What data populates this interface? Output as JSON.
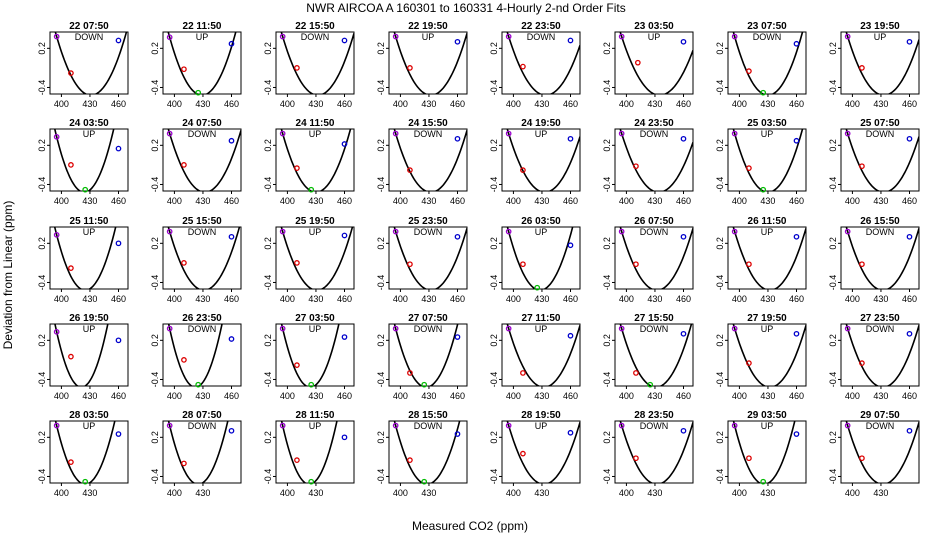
{
  "title": "NWR   AIRCOA A   160301 to 160331   4-Hourly 2-nd Order Fits",
  "xlabel": "Measured CO2 (ppm)",
  "ylabel": "Deviation from Linear (ppm)",
  "colors": {
    "curve": "#000000",
    "p1": "#9900cc",
    "p2": "#dd0000",
    "p3": "#00bb00",
    "p4": "#0000cc",
    "frame": "#000000"
  },
  "chart_data": {
    "type": "scatter",
    "layout": "grid",
    "rows": 5,
    "cols": 8,
    "ylim": [
      -0.5,
      0.45
    ],
    "yticks": [
      -0.4,
      0.2
    ],
    "xticks_rows_1_4": [
      400,
      430,
      460
    ],
    "xticks_row_5": [
      400,
      430
    ],
    "xlim": [
      388,
      470
    ],
    "panels": [
      {
        "label": "22 07:50",
        "dir": "DOWN",
        "vertex": 431,
        "pts": [
          [
            395,
            0.38
          ],
          [
            410,
            -0.18
          ],
          [
            460,
            0.32
          ]
        ]
      },
      {
        "label": "22 11:50",
        "dir": "UP",
        "vertex": 429,
        "pts": [
          [
            395,
            0.37
          ],
          [
            410,
            -0.12
          ],
          [
            425,
            -0.48
          ],
          [
            460,
            0.27
          ]
        ]
      },
      {
        "label": "22 15:50",
        "dir": "DOWN",
        "vertex": 432,
        "pts": [
          [
            395,
            0.38
          ],
          [
            410,
            -0.1
          ],
          [
            460,
            0.32
          ]
        ]
      },
      {
        "label": "22 19:50",
        "dir": "UP",
        "vertex": 432,
        "pts": [
          [
            395,
            0.38
          ],
          [
            410,
            -0.1
          ],
          [
            460,
            0.3
          ]
        ]
      },
      {
        "label": "22 23:50",
        "dir": "DOWN",
        "vertex": 434,
        "pts": [
          [
            395,
            0.38
          ],
          [
            410,
            -0.08
          ],
          [
            460,
            0.32
          ]
        ]
      },
      {
        "label": "23 03:50",
        "dir": "UP",
        "vertex": 435,
        "pts": [
          [
            395,
            0.38
          ],
          [
            412,
            -0.02
          ],
          [
            460,
            0.3
          ]
        ]
      },
      {
        "label": "23 07:50",
        "dir": "DOWN",
        "vertex": 430,
        "pts": [
          [
            395,
            0.38
          ],
          [
            410,
            -0.15
          ],
          [
            425,
            -0.48
          ],
          [
            460,
            0.27
          ]
        ]
      },
      {
        "label": "23 19:50",
        "dir": "UP",
        "vertex": 433,
        "pts": [
          [
            395,
            0.38
          ],
          [
            410,
            -0.1
          ],
          [
            460,
            0.3
          ]
        ]
      },
      {
        "label": "24 03:50",
        "dir": "UP",
        "vertex": 424,
        "pts": [
          [
            395,
            0.33
          ],
          [
            410,
            -0.1
          ],
          [
            425,
            -0.48
          ],
          [
            460,
            0.15
          ]
        ]
      },
      {
        "label": "24 07:50",
        "dir": "DOWN",
        "vertex": 432,
        "pts": [
          [
            395,
            0.38
          ],
          [
            410,
            -0.1
          ],
          [
            460,
            0.27
          ]
        ]
      },
      {
        "label": "24 11:50",
        "dir": "UP",
        "vertex": 430,
        "pts": [
          [
            395,
            0.38
          ],
          [
            410,
            -0.15
          ],
          [
            425,
            -0.48
          ],
          [
            460,
            0.22
          ]
        ]
      },
      {
        "label": "24 15:50",
        "dir": "DOWN",
        "vertex": 432,
        "pts": [
          [
            395,
            0.38
          ],
          [
            410,
            -0.18
          ],
          [
            460,
            0.3
          ]
        ]
      },
      {
        "label": "24 19:50",
        "dir": "UP",
        "vertex": 433,
        "pts": [
          [
            395,
            0.38
          ],
          [
            410,
            -0.18
          ],
          [
            460,
            0.3
          ]
        ]
      },
      {
        "label": "24 23:50",
        "dir": "DOWN",
        "vertex": 434,
        "pts": [
          [
            395,
            0.38
          ],
          [
            410,
            -0.12
          ],
          [
            460,
            0.3
          ]
        ]
      },
      {
        "label": "25 03:50",
        "dir": "UP",
        "vertex": 430,
        "pts": [
          [
            395,
            0.38
          ],
          [
            410,
            -0.15
          ],
          [
            425,
            -0.48
          ],
          [
            460,
            0.27
          ]
        ]
      },
      {
        "label": "25 07:50",
        "dir": "DOWN",
        "vertex": 433,
        "pts": [
          [
            395,
            0.38
          ],
          [
            410,
            -0.12
          ],
          [
            460,
            0.3
          ]
        ]
      },
      {
        "label": "25 11:50",
        "dir": "UP",
        "vertex": 425,
        "pts": [
          [
            395,
            0.33
          ],
          [
            410,
            -0.18
          ],
          [
            460,
            0.2
          ]
        ]
      },
      {
        "label": "25 15:50",
        "dir": "DOWN",
        "vertex": 431,
        "pts": [
          [
            395,
            0.38
          ],
          [
            410,
            -0.1
          ],
          [
            460,
            0.3
          ]
        ]
      },
      {
        "label": "25 19:50",
        "dir": "UP",
        "vertex": 431,
        "pts": [
          [
            395,
            0.38
          ],
          [
            410,
            -0.1
          ],
          [
            460,
            0.32
          ]
        ]
      },
      {
        "label": "25 23:50",
        "dir": "DOWN",
        "vertex": 432,
        "pts": [
          [
            395,
            0.38
          ],
          [
            410,
            -0.12
          ],
          [
            460,
            0.3
          ]
        ]
      },
      {
        "label": "26 03:50",
        "dir": "UP",
        "vertex": 428,
        "pts": [
          [
            395,
            0.38
          ],
          [
            410,
            -0.12
          ],
          [
            425,
            -0.48
          ],
          [
            460,
            0.17
          ]
        ]
      },
      {
        "label": "26 07:50",
        "dir": "DOWN",
        "vertex": 432,
        "pts": [
          [
            395,
            0.38
          ],
          [
            410,
            -0.12
          ],
          [
            460,
            0.3
          ]
        ]
      },
      {
        "label": "26 11:50",
        "dir": "UP",
        "vertex": 432,
        "pts": [
          [
            395,
            0.38
          ],
          [
            410,
            -0.12
          ],
          [
            460,
            0.3
          ]
        ]
      },
      {
        "label": "26 15:50",
        "dir": "DOWN",
        "vertex": 432,
        "pts": [
          [
            395,
            0.38
          ],
          [
            410,
            -0.12
          ],
          [
            460,
            0.3
          ]
        ]
      },
      {
        "label": "26 19:50",
        "dir": "UP",
        "vertex": 421,
        "pts": [
          [
            395,
            0.33
          ],
          [
            410,
            -0.05
          ],
          [
            460,
            0.2
          ]
        ]
      },
      {
        "label": "26 23:50",
        "dir": "DOWN",
        "vertex": 422,
        "pts": [
          [
            395,
            0.38
          ],
          [
            410,
            -0.1
          ],
          [
            425,
            -0.48
          ],
          [
            460,
            0.22
          ]
        ]
      },
      {
        "label": "27 03:50",
        "dir": "UP",
        "vertex": 424,
        "pts": [
          [
            395,
            0.38
          ],
          [
            410,
            -0.18
          ],
          [
            425,
            -0.48
          ],
          [
            460,
            0.25
          ]
        ]
      },
      {
        "label": "27 07:50",
        "dir": "DOWN",
        "vertex": 427,
        "pts": [
          [
            395,
            0.38
          ],
          [
            410,
            -0.3
          ],
          [
            425,
            -0.48
          ],
          [
            460,
            0.25
          ]
        ]
      },
      {
        "label": "27 11:50",
        "dir": "UP",
        "vertex": 432,
        "pts": [
          [
            395,
            0.38
          ],
          [
            410,
            -0.3
          ],
          [
            460,
            0.27
          ]
        ]
      },
      {
        "label": "27 15:50",
        "dir": "DOWN",
        "vertex": 431,
        "pts": [
          [
            395,
            0.38
          ],
          [
            410,
            -0.3
          ],
          [
            425,
            -0.48
          ],
          [
            460,
            0.3
          ]
        ]
      },
      {
        "label": "27 19:50",
        "dir": "UP",
        "vertex": 432,
        "pts": [
          [
            395,
            0.38
          ],
          [
            410,
            -0.15
          ],
          [
            460,
            0.3
          ]
        ]
      },
      {
        "label": "27 23:50",
        "dir": "DOWN",
        "vertex": 432,
        "pts": [
          [
            395,
            0.38
          ],
          [
            410,
            -0.15
          ],
          [
            460,
            0.3
          ]
        ]
      },
      {
        "label": "28 03:50",
        "dir": "UP",
        "vertex": 425,
        "pts": [
          [
            395,
            0.38
          ],
          [
            410,
            -0.18
          ],
          [
            425,
            -0.48
          ],
          [
            460,
            0.25
          ]
        ]
      },
      {
        "label": "28 07:50",
        "dir": "DOWN",
        "vertex": 425,
        "pts": [
          [
            395,
            0.38
          ],
          [
            410,
            -0.2
          ],
          [
            460,
            0.3
          ]
        ]
      },
      {
        "label": "28 11:50",
        "dir": "UP",
        "vertex": 423,
        "pts": [
          [
            395,
            0.38
          ],
          [
            410,
            -0.15
          ],
          [
            425,
            -0.48
          ],
          [
            460,
            0.2
          ]
        ]
      },
      {
        "label": "28 15:50",
        "dir": "DOWN",
        "vertex": 428,
        "pts": [
          [
            395,
            0.38
          ],
          [
            410,
            -0.15
          ],
          [
            425,
            -0.48
          ],
          [
            460,
            0.25
          ]
        ]
      },
      {
        "label": "28 19:50",
        "dir": "UP",
        "vertex": 432,
        "pts": [
          [
            395,
            0.38
          ],
          [
            410,
            -0.05
          ],
          [
            460,
            0.27
          ]
        ]
      },
      {
        "label": "28 23:50",
        "dir": "DOWN",
        "vertex": 432,
        "pts": [
          [
            395,
            0.38
          ],
          [
            410,
            -0.12
          ],
          [
            460,
            0.3
          ]
        ]
      },
      {
        "label": "29 03:50",
        "dir": "UP",
        "vertex": 426,
        "pts": [
          [
            395,
            0.38
          ],
          [
            410,
            -0.12
          ],
          [
            425,
            -0.48
          ],
          [
            460,
            0.25
          ]
        ]
      },
      {
        "label": "29 07:50",
        "dir": "DOWN",
        "vertex": 432,
        "pts": [
          [
            395,
            0.38
          ],
          [
            410,
            -0.12
          ],
          [
            460,
            0.3
          ]
        ]
      }
    ]
  }
}
